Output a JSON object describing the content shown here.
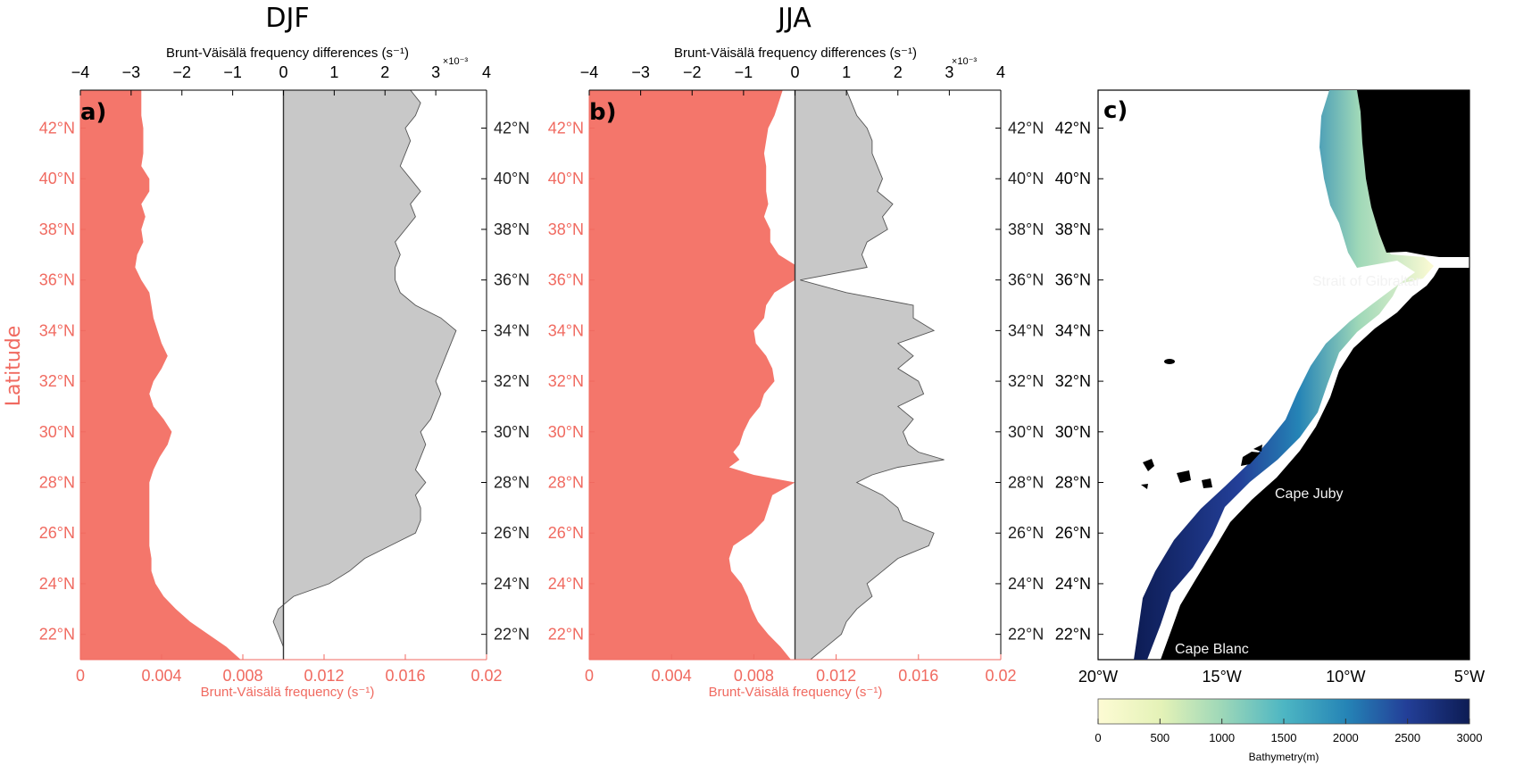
{
  "chart_data": [
    {
      "type": "area",
      "panel_label": "a)",
      "title": "DJF",
      "top_xlabel": "Brunt-Väisälä frequency differences (s⁻¹)",
      "top_exponent": "×10⁻³",
      "top_xticks": [
        "-4",
        "-3",
        "-2",
        "-1",
        "0",
        "1",
        "2",
        "3",
        "4"
      ],
      "top_xlim": [
        -4,
        4
      ],
      "bottom_xlabel": "Brunt-Väisälä frequency (s⁻¹)",
      "bottom_xticks": [
        "0",
        "0.004",
        "0.008",
        "0.012",
        "0.016",
        "0.02"
      ],
      "bottom_xlim": [
        0,
        0.02
      ],
      "ylabel": "Latitude",
      "ylim": [
        21,
        43.5
      ],
      "lat_ticks": [
        "22°N",
        "24°N",
        "26°N",
        "28°N",
        "30°N",
        "32°N",
        "34°N",
        "36°N",
        "38°N",
        "40°N",
        "42°N"
      ],
      "series": [
        {
          "name": "",
          "color": "#f4766b",
          "x_units": "s^-1",
          "lat": [
            21.0,
            21.5,
            22.0,
            22.5,
            23.0,
            23.5,
            24.0,
            24.5,
            25.0,
            25.5,
            26.0,
            27.0,
            28.0,
            28.5,
            29.0,
            29.5,
            30.0,
            30.5,
            31.0,
            31.5,
            32.0,
            32.5,
            33.0,
            33.5,
            34.0,
            34.5,
            35.0,
            35.5,
            36.0,
            36.5,
            37.0,
            37.5,
            38.0,
            38.5,
            39.0,
            39.5,
            40.0,
            40.5,
            41.0,
            41.5,
            42.0,
            42.5,
            43.0,
            43.5
          ],
          "values": [
            0.0079,
            0.0072,
            0.0063,
            0.0054,
            0.0047,
            0.0041,
            0.0037,
            0.0035,
            0.0035,
            0.0034,
            0.0034,
            0.0034,
            0.0034,
            0.0036,
            0.0039,
            0.0043,
            0.0045,
            0.0041,
            0.0036,
            0.0034,
            0.0036,
            0.004,
            0.0043,
            0.004,
            0.0038,
            0.0036,
            0.0035,
            0.0034,
            0.003,
            0.0027,
            0.0028,
            0.0031,
            0.003,
            0.0032,
            0.003,
            0.0034,
            0.0034,
            0.003,
            0.0031,
            0.0031,
            0.0031,
            0.003,
            0.003,
            0.003
          ]
        },
        {
          "name": "",
          "color": "#c8c8c8",
          "x_units": "1e-3 s^-1",
          "lat": [
            21.0,
            21.5,
            22.0,
            22.5,
            23.0,
            23.5,
            24.0,
            24.5,
            25.0,
            25.5,
            26.0,
            26.5,
            27.0,
            27.5,
            28.0,
            28.5,
            29.0,
            29.5,
            30.0,
            30.5,
            31.0,
            31.5,
            32.0,
            32.5,
            33.0,
            33.5,
            34.0,
            34.5,
            35.0,
            35.5,
            36.0,
            36.5,
            37.0,
            37.5,
            38.0,
            38.5,
            39.0,
            39.5,
            40.0,
            40.5,
            41.0,
            41.5,
            42.0,
            42.5,
            43.0,
            43.5
          ],
          "values": [
            0.0,
            0.0,
            -0.1,
            -0.2,
            -0.1,
            0.2,
            0.9,
            1.3,
            1.6,
            2.1,
            2.6,
            2.7,
            2.7,
            2.6,
            2.8,
            2.6,
            2.7,
            2.8,
            2.7,
            2.9,
            3.0,
            3.1,
            3.0,
            3.1,
            3.2,
            3.3,
            3.4,
            3.1,
            2.6,
            2.3,
            2.2,
            2.2,
            2.3,
            2.2,
            2.4,
            2.6,
            2.5,
            2.7,
            2.5,
            2.3,
            2.4,
            2.5,
            2.4,
            2.6,
            2.7,
            2.5
          ]
        }
      ]
    },
    {
      "type": "area",
      "panel_label": "b)",
      "title": "JJA",
      "top_xlabel": "Brunt-Väisälä frequency differences (s⁻¹)",
      "top_exponent": "×10⁻³",
      "top_xticks": [
        "-4",
        "-3",
        "-2",
        "-1",
        "0",
        "1",
        "2",
        "3",
        "4"
      ],
      "top_xlim": [
        -4,
        4
      ],
      "bottom_xlabel": "Brunt-Väisälä frequency (s⁻¹)",
      "bottom_xticks": [
        "0",
        "0.004",
        "0.008",
        "0.012",
        "0.016",
        "0.02"
      ],
      "bottom_xlim": [
        0,
        0.02
      ],
      "ylim": [
        21,
        43.5
      ],
      "lat_ticks": [
        "22°N",
        "24°N",
        "26°N",
        "28°N",
        "30°N",
        "32°N",
        "34°N",
        "36°N",
        "38°N",
        "40°N",
        "42°N"
      ],
      "series": [
        {
          "name": "",
          "color": "#f4766b",
          "x_units": "s^-1",
          "lat": [
            21.0,
            21.5,
            22.0,
            22.5,
            23.0,
            23.5,
            24.0,
            24.5,
            25.0,
            25.5,
            26.0,
            26.5,
            27.0,
            27.5,
            28.0,
            28.3,
            28.6,
            28.9,
            29.2,
            29.5,
            30.0,
            30.5,
            31.0,
            31.5,
            32.0,
            32.5,
            33.0,
            33.5,
            34.0,
            34.5,
            35.0,
            35.5,
            36.0,
            36.5,
            37.0,
            37.5,
            38.0,
            38.5,
            39.0,
            39.5,
            40.0,
            40.5,
            41.0,
            41.5,
            42.0,
            42.5,
            43.0,
            43.5
          ],
          "values": [
            0.0098,
            0.0093,
            0.0087,
            0.0082,
            0.0079,
            0.0077,
            0.0074,
            0.0069,
            0.0068,
            0.007,
            0.0079,
            0.0085,
            0.0087,
            0.0089,
            0.01,
            0.008,
            0.0068,
            0.0073,
            0.007,
            0.0073,
            0.0075,
            0.0078,
            0.0083,
            0.0085,
            0.009,
            0.0089,
            0.0086,
            0.0081,
            0.008,
            0.0085,
            0.0086,
            0.009,
            0.01,
            0.0102,
            0.0092,
            0.0088,
            0.0088,
            0.0085,
            0.0087,
            0.0086,
            0.0086,
            0.0086,
            0.0085,
            0.0086,
            0.0087,
            0.009,
            0.0092,
            0.0094
          ]
        },
        {
          "name": "",
          "color": "#c8c8c8",
          "x_units": "1e-3 s^-1",
          "lat": [
            21.0,
            21.5,
            22.0,
            22.5,
            23.0,
            23.5,
            24.0,
            24.5,
            25.0,
            25.5,
            26.0,
            26.5,
            27.0,
            27.5,
            28.0,
            28.3,
            28.6,
            28.9,
            29.2,
            29.5,
            30.0,
            30.5,
            31.0,
            31.5,
            32.0,
            32.5,
            33.0,
            33.5,
            34.0,
            34.5,
            35.0,
            35.5,
            36.0,
            36.5,
            37.0,
            37.5,
            38.0,
            38.5,
            39.0,
            39.5,
            40.0,
            40.5,
            41.0,
            41.5,
            42.0,
            42.5,
            43.0,
            43.5
          ],
          "values": [
            0.3,
            0.6,
            0.9,
            1.0,
            1.2,
            1.5,
            1.4,
            1.7,
            2.0,
            2.6,
            2.7,
            2.1,
            2.0,
            1.7,
            1.2,
            1.5,
            2.0,
            2.9,
            2.4,
            2.2,
            2.1,
            2.3,
            2.0,
            2.5,
            2.4,
            2.0,
            2.3,
            2.0,
            2.7,
            2.3,
            2.3,
            1.0,
            0.1,
            1.4,
            1.3,
            1.4,
            1.8,
            1.7,
            1.9,
            1.6,
            1.7,
            1.6,
            1.5,
            1.5,
            1.4,
            1.2,
            1.1,
            1.0
          ]
        }
      ]
    }
  ],
  "map": {
    "panel_label": "c)",
    "lat_ticks": [
      "22°N",
      "24°N",
      "26°N",
      "28°N",
      "30°N",
      "32°N",
      "34°N",
      "36°N",
      "38°N",
      "40°N",
      "42°N"
    ],
    "lon_ticks": [
      "20°W",
      "15°W",
      "10°W",
      "5°W"
    ],
    "places": {
      "gibraltar": "Strait of Gibraltar",
      "juby": "Cape Juby",
      "blanc": "Cape Blanc"
    },
    "colorbar": {
      "label": "Bathymetry(m)",
      "ticks": [
        "0",
        "500",
        "1000",
        "1500",
        "2000",
        "2500",
        "3000"
      ],
      "range": [
        0,
        3000
      ],
      "colors": [
        "#fdfbd4",
        "#e4f2b7",
        "#9fd8b8",
        "#4db6c3",
        "#2584b6",
        "#233f98",
        "#0d1c54"
      ]
    },
    "land_color": "#000000"
  }
}
